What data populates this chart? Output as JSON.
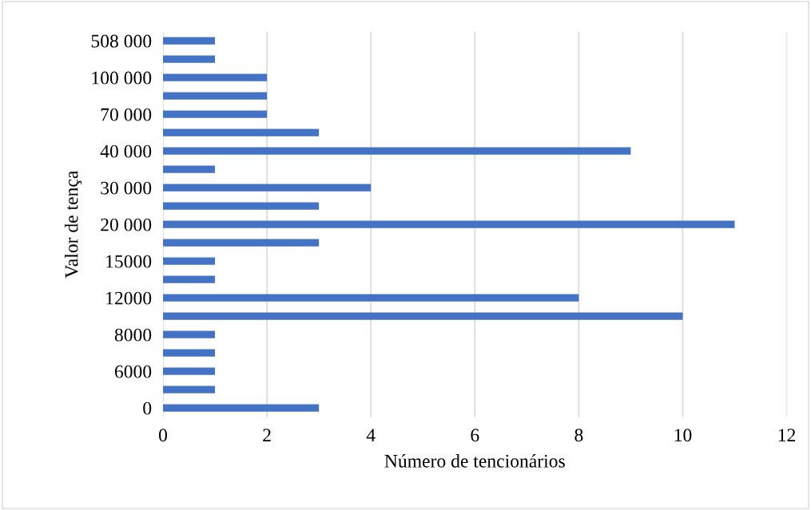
{
  "chart_data": {
    "type": "bar",
    "orientation": "horizontal",
    "xlabel": "Número de tencionários",
    "ylabel": "Valor de tença",
    "categories": [
      "508 000",
      null,
      "100 000",
      null,
      "70 000",
      null,
      "40 000",
      null,
      "30 000",
      null,
      "20 000",
      null,
      "15000",
      null,
      "12000",
      null,
      "8000",
      null,
      "6000",
      null,
      "0"
    ],
    "values": [
      1,
      1,
      2,
      2,
      2,
      3,
      9,
      1,
      4,
      3,
      11,
      3,
      1,
      1,
      8,
      10,
      1,
      1,
      1,
      1,
      3
    ],
    "color": "#4472c4",
    "xlim": [
      0,
      12
    ],
    "xticks": [
      0,
      2,
      4,
      6,
      8,
      10,
      12
    ],
    "grid": "x",
    "legend": false
  }
}
